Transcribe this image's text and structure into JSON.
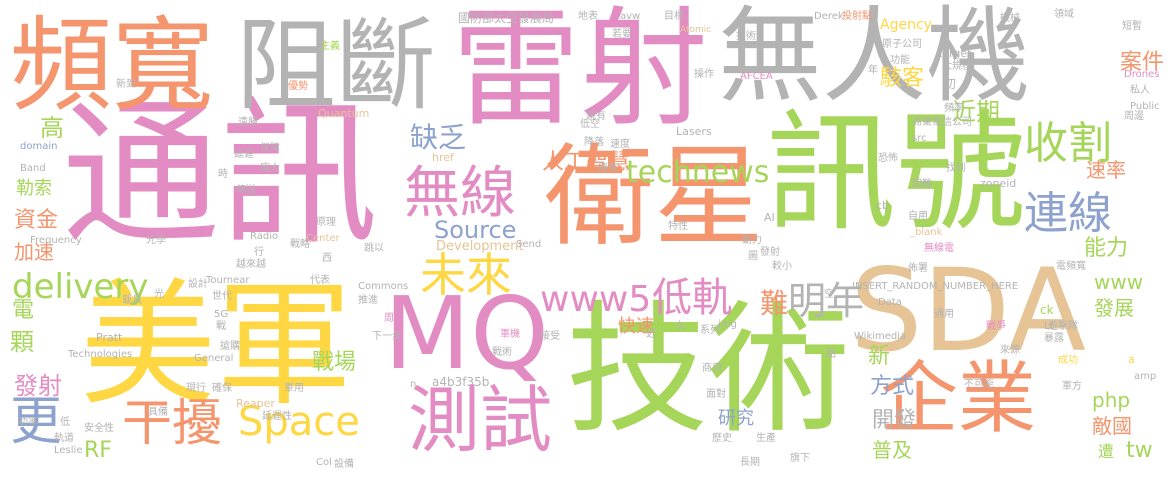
{
  "palette": {
    "pink": "#e38cc3",
    "green": "#a6d659",
    "orange": "#f4956e",
    "yellow": "#fed743",
    "gray": "#b3b3b3",
    "tan": "#e6c495",
    "blue": "#8da2cc",
    "teal": "#6fc4a7"
  },
  "words": {
    "w_tongxun": "通訊",
    "w_leishe": "雷射",
    "w_wurenji": "無人機",
    "w_xunhao": "訊號",
    "w_meijun": "美軍",
    "w_jishu": "技術",
    "w_weixing": "衛星",
    "w_sda": "SDA",
    "w_pinkuan": "頻寬",
    "w_zuduan": "阻斷",
    "w_mq": "MQ",
    "w_qiye": "企業",
    "w_ceshi": "測試",
    "w_wuxian": "無線",
    "w_weilai": "未來",
    "w_shouge": "收割",
    "w_lianxian": "連線",
    "w_ganrao": "干擾",
    "w_space": "Space",
    "w_www5": "www5",
    "w_didui": "低軌",
    "w_mingnian": "明年",
    "w_technews": "technews",
    "w_delivery": "delivery",
    "w_geng": "更",
    "w_source": "Source",
    "w_rengong": "人工智慧",
    "w_quefa": "缺乏",
    "w_jinqi": "近期",
    "w_anjian": "案件",
    "w_haike": "駭客",
    "w_nengli": "能力",
    "w_sulv": "速率",
    "w_www": "www",
    "w_fazhan": "發展",
    "w_diguo": "敵國",
    "w_php": "php",
    "w_zhanchang": "戰場",
    "w_kuaisu": "快速",
    "w_nan": "難",
    "w_fangshi": "方式",
    "w_kaifa": "開發",
    "w_puji": "普及",
    "w_xin": "新",
    "w_yanjiu": "研究",
    "w_fashe": "發射",
    "w_rf": "RF",
    "w_tw": "tw",
    "w_ke": "顆",
    "w_dian": "電",
    "w_zijin": "資金",
    "w_jiasu": "加速",
    "w_leshuo": "勒索",
    "w_gao": "高",
    "w_zao": "遭",
    "w_guofang": "國防部太空發展局",
    "w_development": "Development",
    "w_a4b": "a4b3f35b",
    "w_agency": "Agency",
    "w_drones": "Drones",
    "w_target": "target",
    "w_atomic": "Atomic",
    "w_quantum": "Quantum",
    "w_lasers": "Lasers",
    "w_afcea": "AFCEA",
    "w_derek": "Derek",
    "w_touzhu": "投射點",
    "w_radio": "Radio",
    "w_center": "Center",
    "w_frequency": "Frequency",
    "w_band": "Band",
    "w_domain": "domain",
    "w_href": "href",
    "w_src": "src",
    "w_zoneid": "zoneid",
    "w_blank": "_blank",
    "w_public": "Public",
    "w_ai": "AI",
    "w_cb": "cb",
    "w_insert": "INSERT_RANDOM_NUMBER_HERE",
    "w_data": "Data",
    "w_ck": "ck",
    "w_lt": "Lt",
    "w_commons": "Commons",
    "w_wikimedia": "Wikimedia",
    "w_img": "img",
    "w_send": "Send",
    "w_n": "n",
    "w_reaper": "Reaper",
    "w_tournear": "Tournear",
    "w_pratt": "Pratt",
    "w_technologies": "Technologies",
    "w_general": "General",
    "w_5g": "5G",
    "w_leslie": "Leslie",
    "w_col": "Col",
    "w_amp": "amp",
    "w_a": "a",
    "w_avw": "avw",
    "w_xinzeng": "新到",
    "w_zhuyi": "主義",
    "w_youshi": "優勢",
    "w_mubiao": "目標",
    "w_ditu": "地表",
    "w_sili": "私人",
    "w_yuanzi": "原子公司",
    "w_gongneng": "功能",
    "w_daxing": "大規模",
    "w_chu": "初",
    "w_nian": "年",
    "w_zhoubian": "周邊",
    "w_pinlv": "頻率",
    "w_shangye": "商業電信公司",
    "w_xianyou": "現有",
    "w_yongyou": "擁有",
    "w_sudu": "速度",
    "w_zhaodao": "找到",
    "w_kunnan": "困難",
    "w_ziyong": "自用",
    "w_wuxiandian": "無線電",
    "w_budui": "佈署",
    "w_dianpinkuan": "電頻寬",
    "w_tongyong": "通用",
    "w_zhanzheng": "戰爭",
    "w_laiyuan": "來源",
    "w_baolu": "暴露",
    "w_chenggong": "成功",
    "w_junfang": "軍方",
    "w_bukeneng": "不可能",
    "w_yaosai": "遊擊隊",
    "w_daibiao": "代表",
    "w_kongzhi": "空",
    "w_dian2": "點",
    "w_jiu": "久",
    "w_xilie": "系列",
    "w_jin": "近",
    "w_shangyong": "商用",
    "w_mianduei": "面對",
    "w_lishi": "歷史",
    "w_shengchan": "生產",
    "w_qixia": "旗下",
    "w_changqi": "長期",
    "w_zhanlue": "戰略",
    "w_yuanli": "原理",
    "w_tuikan": "推進",
    "w_xiayibu": "下一步",
    "w_zhoubian2": "周長",
    "w_junji": "軍機",
    "w_zhanshu": "戰術",
    "w_jieshou": "接受",
    "w_junyong": "軍用",
    "w_juyou": "具備",
    "w_gongneng2": "功率",
    "w_gaofang": "低",
    "w_anquan": "安全性",
    "w_guidao": "軌道",
    "w_shebei": "設備",
    "w_chuchao": "越來越",
    "w_dianyi": "跳以",
    "w_xi": "西",
    "w_guangxue": "光學",
    "w_hang": "行",
    "w_sheji": "設計",
    "w_shidai": "世代",
    "w_guang": "光",
    "w_zaiju": "載具",
    "w_zhan": "戰",
    "w_zhaoyao": "搶購",
    "w_xianxing": "現行",
    "w_queshi": "確保",
    "w_yanchi": "延遲性",
    "w_chuansong": "傳送",
    "w_pangda": "龐大",
    "w_baozhang": "保障",
    "w_yuanjuli": "遠勝",
    "w_yanchuan": "延遲",
    "w_shi": "時",
    "w_dikong": "低空",
    "w_jiangluo": "降落",
    "w_duanzan": "短暫",
    "w_lingyu": "領域",
    "w_jiye": "機械",
    "w_teshu": "特性",
    "w_dongli": "動力",
    "w_tu": "圖",
    "w_fazhang": "發射",
    "w_xiao": "較小",
    "w_ruo": "若要",
    "w_caozuo": "操作",
    "w_jiyi": "技術",
    "w_kongbu": "恐怖"
  }
}
